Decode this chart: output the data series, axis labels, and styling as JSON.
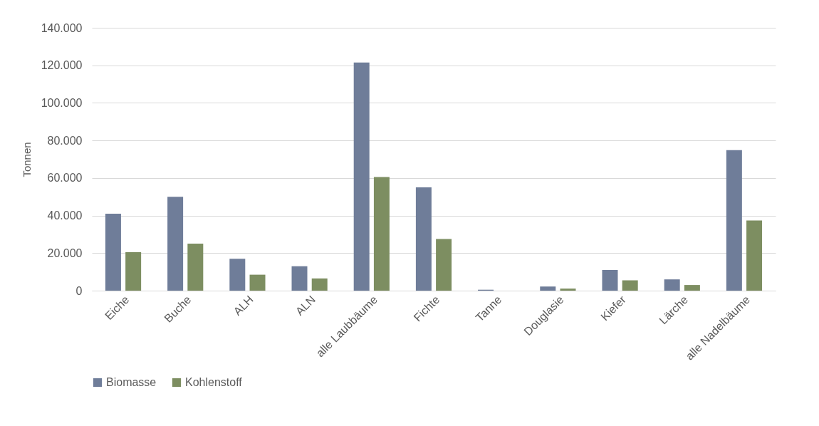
{
  "chart_data": {
    "type": "bar",
    "ylabel": "Tonnen",
    "categories": [
      "Eiche",
      "Buche",
      "ALH",
      "ALN",
      "alle Laubbäume",
      "Fichte",
      "Tanne",
      "Douglasie",
      "Kiefer",
      "Lärche",
      "alle Nadelbäume"
    ],
    "series": [
      {
        "name": "Biomasse",
        "color": "#6f7d99",
        "values": [
          41000,
          50000,
          17000,
          13000,
          121500,
          55000,
          500,
          2200,
          11000,
          6000,
          74800
        ]
      },
      {
        "name": "Kohlenstoff",
        "color": "#7d8e61",
        "values": [
          20500,
          25000,
          8500,
          6500,
          60500,
          27500,
          0,
          1100,
          5500,
          3000,
          37400
        ]
      }
    ],
    "ylim": [
      0,
      140000
    ],
    "yticks": [
      {
        "value": 0,
        "label": "0"
      },
      {
        "value": 20000,
        "label": "20.000"
      },
      {
        "value": 40000,
        "label": "40.000"
      },
      {
        "value": 60000,
        "label": "60.000"
      },
      {
        "value": 80000,
        "label": "80.000"
      },
      {
        "value": 100000,
        "label": "100.000"
      },
      {
        "value": 120000,
        "label": "120.000"
      },
      {
        "value": 140000,
        "label": "140.000"
      }
    ],
    "grid": "y",
    "legend": "bottom"
  }
}
